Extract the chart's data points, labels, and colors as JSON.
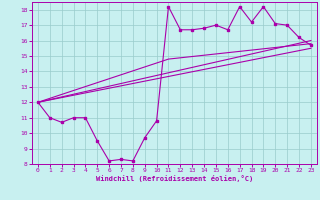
{
  "xlabel": "Windchill (Refroidissement éolien,°C)",
  "background_color": "#c8f0f0",
  "grid_color": "#99cccc",
  "line_color": "#aa00aa",
  "xlim": [
    -0.5,
    23.5
  ],
  "ylim": [
    8,
    18.5
  ],
  "xticks": [
    0,
    1,
    2,
    3,
    4,
    5,
    6,
    7,
    8,
    9,
    10,
    11,
    12,
    13,
    14,
    15,
    16,
    17,
    18,
    19,
    20,
    21,
    22,
    23
  ],
  "yticks": [
    8,
    9,
    10,
    11,
    12,
    13,
    14,
    15,
    16,
    17,
    18
  ],
  "line1_x": [
    0,
    1,
    2,
    3,
    4,
    5,
    6,
    7,
    8,
    9,
    10,
    11,
    12,
    13,
    14,
    15,
    16,
    17,
    18,
    19,
    20,
    21,
    22,
    23
  ],
  "line1_y": [
    12.0,
    11.0,
    10.7,
    11.0,
    11.0,
    9.5,
    8.2,
    8.3,
    8.2,
    9.7,
    10.8,
    18.2,
    16.7,
    16.7,
    16.8,
    17.0,
    16.7,
    18.2,
    17.2,
    18.2,
    17.1,
    17.0,
    16.2,
    15.7
  ],
  "trend1_x": [
    0,
    23
  ],
  "trend1_y": [
    12.0,
    15.5
  ],
  "trend2_x": [
    0,
    23
  ],
  "trend2_y": [
    12.0,
    16.0
  ],
  "trend3_x": [
    0,
    11,
    23
  ],
  "trend3_y": [
    12.0,
    14.8,
    15.8
  ]
}
